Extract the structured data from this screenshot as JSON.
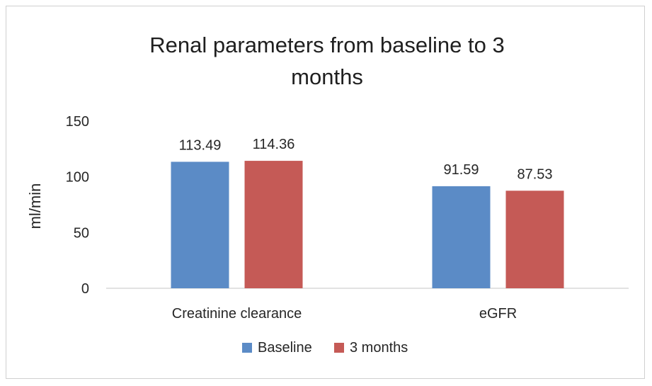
{
  "chart_data": {
    "type": "bar",
    "title_lines": [
      "Renal parameters from baseline to 3",
      "months"
    ],
    "xlabel": "",
    "ylabel": "ml/min",
    "ylim": [
      0,
      150
    ],
    "yticks": [
      0,
      50,
      100,
      150
    ],
    "categories": [
      "Creatinine clearance",
      "eGFR"
    ],
    "series": [
      {
        "name": "Baseline",
        "color": "#5b8bc6",
        "values": [
          113.49,
          91.59
        ],
        "labels": [
          "113.49",
          "91.59"
        ]
      },
      {
        "name": "3 months",
        "color": "#c55a56",
        "values": [
          114.36,
          87.53
        ],
        "labels": [
          "114.36",
          "87.53"
        ]
      }
    ],
    "grid": false,
    "legend_position": "bottom"
  }
}
